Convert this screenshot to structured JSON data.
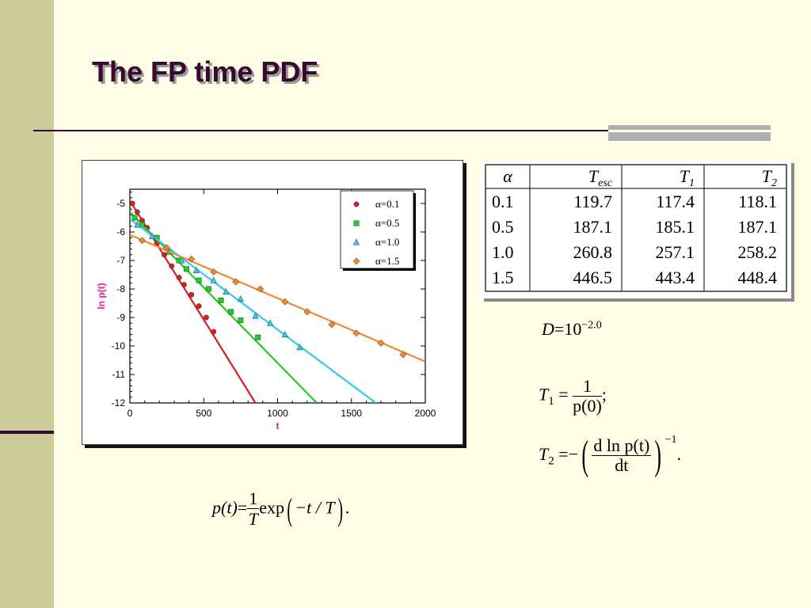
{
  "slide": {
    "title": "The FP time PDF"
  },
  "chart_data": {
    "type": "scatter",
    "xlabel": "t",
    "ylabel": "ln p(t)",
    "xlim": [
      0,
      2000
    ],
    "ylim": [
      -12,
      -4.5
    ],
    "xticks": [
      0,
      500,
      1000,
      1500,
      2000
    ],
    "yticks": [
      -5,
      -6,
      -7,
      -8,
      -9,
      -10,
      -11,
      -12
    ],
    "legend_position": "top-right",
    "series": [
      {
        "name": "α=0.1",
        "color": "#d62020",
        "marker": "circle",
        "fit": {
          "x": [
            0,
            850
          ],
          "y": [
            -4.9,
            -12
          ]
        },
        "points": [
          [
            17,
            -5.0
          ],
          [
            50,
            -5.3
          ],
          [
            83,
            -5.6
          ],
          [
            117,
            -5.85
          ],
          [
            183,
            -6.4
          ],
          [
            233,
            -6.8
          ],
          [
            283,
            -7.2
          ],
          [
            333,
            -7.6
          ],
          [
            367,
            -7.85
          ],
          [
            417,
            -8.2
          ],
          [
            467,
            -8.6
          ],
          [
            517,
            -9.0
          ],
          [
            567,
            -9.5
          ]
        ]
      },
      {
        "name": "α=0.5",
        "color": "#22cc22",
        "marker": "square",
        "fit": {
          "x": [
            0,
            1265
          ],
          "y": [
            -5.3,
            -12
          ]
        },
        "points": [
          [
            33,
            -5.5
          ],
          [
            83,
            -5.75
          ],
          [
            183,
            -6.2
          ],
          [
            267,
            -6.7
          ],
          [
            333,
            -7.0
          ],
          [
            383,
            -7.3
          ],
          [
            467,
            -7.7
          ],
          [
            533,
            -8.0
          ],
          [
            617,
            -8.4
          ],
          [
            683,
            -8.8
          ],
          [
            750,
            -9.1
          ],
          [
            867,
            -9.7
          ]
        ]
      },
      {
        "name": "α=1.0",
        "color": "#33c8ee",
        "marker": "triangle",
        "fit": {
          "x": [
            0,
            1665
          ],
          "y": [
            -5.55,
            -12
          ]
        },
        "points": [
          [
            50,
            -5.75
          ],
          [
            150,
            -6.15
          ],
          [
            250,
            -6.55
          ],
          [
            350,
            -7.0
          ],
          [
            450,
            -7.35
          ],
          [
            567,
            -7.7
          ],
          [
            650,
            -8.1
          ],
          [
            750,
            -8.35
          ],
          [
            850,
            -8.95
          ],
          [
            950,
            -9.2
          ],
          [
            1050,
            -9.6
          ],
          [
            1150,
            -10.05
          ]
        ]
      },
      {
        "name": "α=1.5",
        "color": "#ee8833",
        "marker": "diamond",
        "fit": {
          "x": [
            0,
            2000
          ],
          "y": [
            -6.1,
            -10.55
          ]
        },
        "points": [
          [
            83,
            -6.3
          ],
          [
            250,
            -6.55
          ],
          [
            417,
            -6.95
          ],
          [
            567,
            -7.4
          ],
          [
            717,
            -7.75
          ],
          [
            883,
            -8.0
          ],
          [
            1050,
            -8.45
          ],
          [
            1200,
            -8.8
          ],
          [
            1367,
            -9.25
          ],
          [
            1533,
            -9.55
          ],
          [
            1700,
            -9.9
          ],
          [
            1850,
            -10.3
          ]
        ]
      }
    ]
  },
  "table": {
    "headers": [
      "α",
      "T",
      "T",
      "T"
    ],
    "header_subs": [
      "",
      "esc",
      "1",
      "2"
    ],
    "rows": [
      [
        "0.1",
        "119.7",
        "117.4",
        "118.1"
      ],
      [
        "0.5",
        "187.1",
        "185.1",
        "187.1"
      ],
      [
        "1.0",
        "260.8",
        "257.1",
        "258.2"
      ],
      [
        "1.5",
        "446.5",
        "443.4",
        "448.4"
      ]
    ]
  },
  "formulas": {
    "d": {
      "var": "D",
      "eq": "=",
      "base": "10",
      "exp": "−2.0"
    },
    "t1": {
      "var": "T",
      "sub": "1",
      "eq": "=",
      "num": "1",
      "den": "p(0)",
      "end": ";"
    },
    "t2": {
      "var": "T",
      "sub": "2",
      "eq": "=",
      "neg": "−",
      "num": "d ln p(t)",
      "den": "dt",
      "exp": "−1",
      "end": "."
    },
    "pdf": {
      "lhs": "p(t)",
      "eq": "=",
      "num": "1",
      "den": "T",
      "fn": "exp",
      "arg": "−t / T",
      "end": "."
    }
  }
}
